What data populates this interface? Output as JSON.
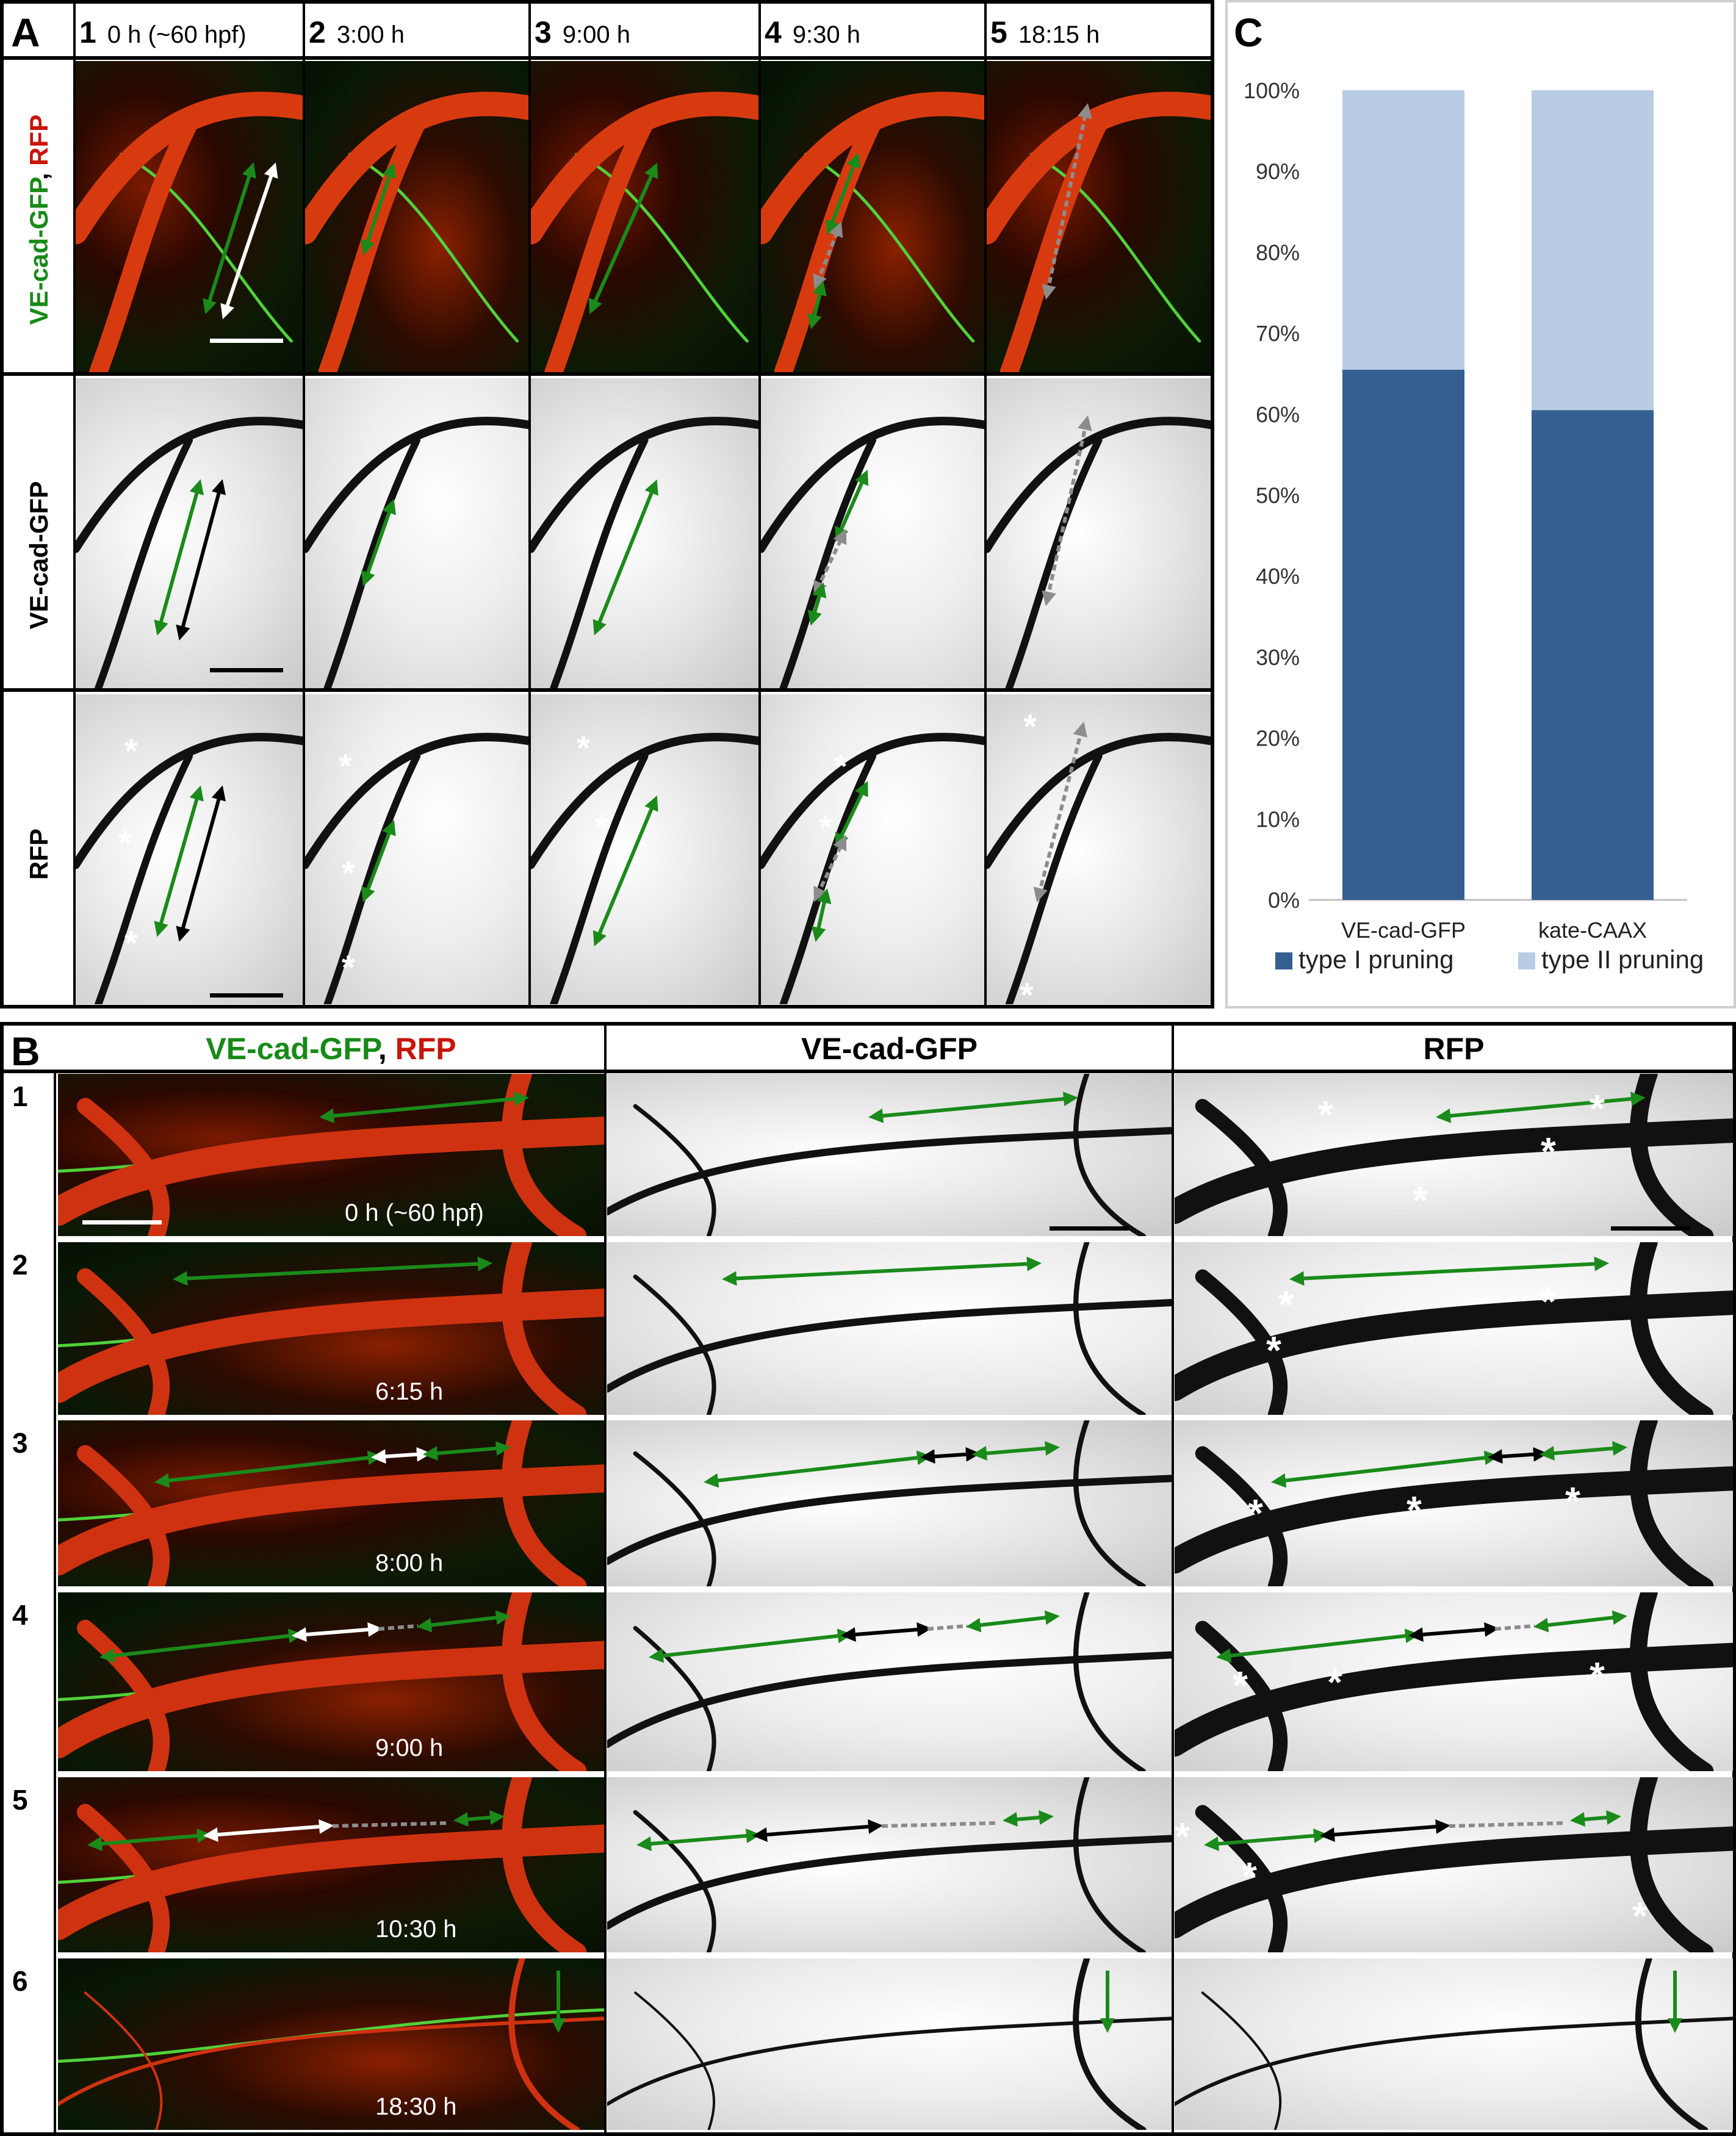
{
  "panel_a": {
    "letter": "A",
    "columns": [
      {
        "num": "1",
        "time": "0 h (~60 hpf)"
      },
      {
        "num": "2",
        "time": "3:00 h"
      },
      {
        "num": "3",
        "time": "9:00 h"
      },
      {
        "num": "4",
        "time": "9:30 h"
      },
      {
        "num": "5",
        "time": "18:15 h"
      }
    ],
    "rows": {
      "merge_green": "VE-cad-GFP",
      "merge_sep": ", ",
      "merge_red": "RFP",
      "vecad": "VE-cad-GFP",
      "rfp": "RFP"
    },
    "asterisk": "*"
  },
  "panel_b": {
    "letter": "B",
    "headers": {
      "merge_green": "VE-cad-GFP",
      "merge_sep": ", ",
      "merge_red": "RFP",
      "vecad": "VE-cad-GFP",
      "rfp": "RFP"
    },
    "rows": [
      {
        "num": "1",
        "time": "0 h (~60 hpf)"
      },
      {
        "num": "2",
        "time": "6:15 h"
      },
      {
        "num": "3",
        "time": "8:00 h"
      },
      {
        "num": "4",
        "time": "9:00 h"
      },
      {
        "num": "5",
        "time": "10:30 h"
      },
      {
        "num": "6",
        "time": "18:30 h"
      }
    ],
    "asterisk": "*"
  },
  "panel_c": {
    "letter": "C"
  },
  "colors": {
    "green": "#178a17",
    "red": "#c8140a",
    "type1": "#355f91",
    "type2": "#b8cce4",
    "arrow_green": "#1a8a1a",
    "arrow_grey": "#8c8c8c"
  },
  "chart_data": {
    "type": "bar",
    "stacked": true,
    "categories": [
      "VE-cad-GFP",
      "kate-CAAX"
    ],
    "series": [
      {
        "name": "type I pruning",
        "values": [
          65.5,
          60.5
        ]
      },
      {
        "name": "type II pruning",
        "values": [
          34.5,
          39.5
        ]
      }
    ],
    "ylim": [
      0,
      100
    ],
    "yticks": [
      "0%",
      "10%",
      "20%",
      "30%",
      "40%",
      "50%",
      "60%",
      "70%",
      "80%",
      "90%",
      "100%"
    ],
    "legend": "bottom",
    "grid": false
  }
}
